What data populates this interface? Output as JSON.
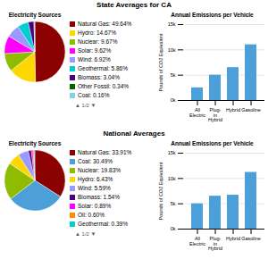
{
  "chart_data": [
    {
      "type": "pie",
      "title": "Electricity Sources",
      "annotations": [
        "State Averages for CA",
        "▲ 1/2 ▼"
      ],
      "categories": [
        "Natural Gas: 49.64%",
        "Hydro: 14.67%",
        "Nuclear: 9.67%",
        "Solar: 9.62%",
        "Wind: 6.92%",
        "Geothermal: 5.86%",
        "Biomass: 3.04%",
        "Other Fossil: 0.34%",
        "Coal: 0.16%"
      ],
      "values": [
        49.64,
        14.67,
        9.67,
        9.62,
        6.92,
        5.86,
        3.04,
        0.34,
        0.16
      ],
      "colors": [
        "#8B0000",
        "#FFD700",
        "#8FBC00",
        "#FF00FF",
        "#9999FF",
        "#00CED1",
        "#4B0082",
        "#006400",
        "#87CEEB"
      ],
      "legend": "right"
    },
    {
      "type": "bar",
      "title": "Annual Emissions per Vehicle",
      "categories": [
        "All\nElectric",
        "Plug-\nin\nHybrid",
        "Hybrid",
        "Gasoline"
      ],
      "values": [
        2500,
        5000,
        6500,
        11000
      ],
      "color": "#4d9fda",
      "ylabel": "Pounds of CO2 Equivalent",
      "ylim": [
        0,
        15000
      ],
      "yticks": [
        {
          "value": 0,
          "label": "0k"
        },
        {
          "value": 5000,
          "label": "5k"
        },
        {
          "value": 10000,
          "label": "10k"
        },
        {
          "value": 15000,
          "label": "15k"
        }
      ],
      "grid": true
    },
    {
      "type": "pie",
      "title": "Electricity Sources",
      "annotations": [
        "National Averages",
        "▲ 1/2 ▼"
      ],
      "categories": [
        "Natural Gas: 33.91%",
        "Coal: 30.49%",
        "Nuclear: 19.83%",
        "Hydro: 6.43%",
        "Wind: 5.59%",
        "Biomass: 1.54%",
        "Solar: 0.89%",
        "Oil: 0.60%",
        "Geothermal: 0.39%"
      ],
      "values": [
        33.91,
        30.49,
        19.83,
        6.43,
        5.59,
        1.54,
        0.89,
        0.6,
        0.39
      ],
      "colors": [
        "#8B0000",
        "#4d9fda",
        "#8FBC00",
        "#FFD700",
        "#9999FF",
        "#4B0082",
        "#FF00FF",
        "#FF8C00",
        "#00CED1"
      ],
      "legend": "right"
    },
    {
      "type": "bar",
      "title": "Annual Emissions per Vehicle",
      "categories": [
        "All\nElectric",
        "Plug-\nin\nHybrid",
        "Hybrid",
        "Gasoline"
      ],
      "values": [
        5000,
        6500,
        6700,
        11200
      ],
      "color": "#4d9fda",
      "ylabel": "Pounds of CO2 Equivalent",
      "ylim": [
        0,
        15000
      ],
      "yticks": [
        {
          "value": 0,
          "label": "0k"
        },
        {
          "value": 5000,
          "label": "5k"
        },
        {
          "value": 10000,
          "label": "10k"
        },
        {
          "value": 15000,
          "label": "15k"
        }
      ],
      "grid": true
    }
  ]
}
